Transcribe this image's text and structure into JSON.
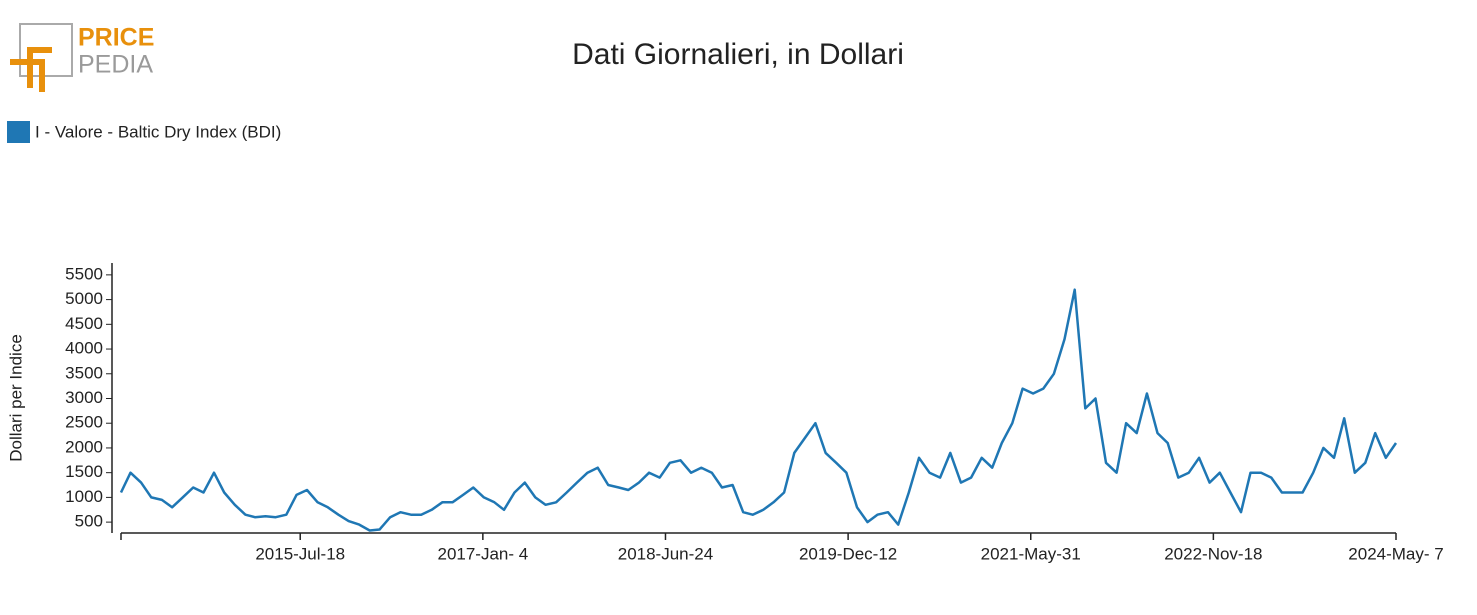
{
  "logo": {
    "line1": "PRICE",
    "line2": "PEDIA"
  },
  "chart_data": {
    "type": "line",
    "title": "Dati Giornalieri, in Dollari",
    "y_label": "Dollari per Indice",
    "x": [
      "2014-02-07",
      "2014-03-07",
      "2014-04-07",
      "2014-05-07",
      "2014-06-07",
      "2014-07-07",
      "2014-08-07",
      "2014-09-07",
      "2014-10-07",
      "2014-11-07",
      "2014-12-07",
      "2015-01-07",
      "2015-02-07",
      "2015-03-07",
      "2015-04-07",
      "2015-05-07",
      "2015-06-07",
      "2015-07-07",
      "2015-08-07",
      "2015-09-07",
      "2015-10-07",
      "2015-11-07",
      "2015-12-07",
      "2016-01-07",
      "2016-02-07",
      "2016-03-07",
      "2016-04-07",
      "2016-05-07",
      "2016-06-07",
      "2016-07-07",
      "2016-08-07",
      "2016-09-07",
      "2016-10-07",
      "2016-11-07",
      "2016-12-07",
      "2017-01-07",
      "2017-02-07",
      "2017-03-07",
      "2017-04-07",
      "2017-05-07",
      "2017-06-07",
      "2017-07-07",
      "2017-08-07",
      "2017-09-07",
      "2017-10-07",
      "2017-11-07",
      "2017-12-07",
      "2018-01-07",
      "2018-02-07",
      "2018-03-07",
      "2018-04-07",
      "2018-05-07",
      "2018-06-07",
      "2018-07-07",
      "2018-08-07",
      "2018-09-07",
      "2018-10-07",
      "2018-11-07",
      "2018-12-07",
      "2019-01-07",
      "2019-02-07",
      "2019-03-07",
      "2019-04-07",
      "2019-05-07",
      "2019-06-07",
      "2019-07-07",
      "2019-08-07",
      "2019-09-07",
      "2019-10-07",
      "2019-11-07",
      "2019-12-07",
      "2020-01-07",
      "2020-02-07",
      "2020-03-07",
      "2020-04-07",
      "2020-05-07",
      "2020-06-07",
      "2020-07-07",
      "2020-08-07",
      "2020-09-07",
      "2020-10-07",
      "2020-11-07",
      "2020-12-07",
      "2021-01-07",
      "2021-02-07",
      "2021-03-07",
      "2021-04-07",
      "2021-05-07",
      "2021-06-07",
      "2021-07-07",
      "2021-08-07",
      "2021-09-07",
      "2021-10-07",
      "2021-11-07",
      "2021-12-07",
      "2022-01-07",
      "2022-02-07",
      "2022-03-07",
      "2022-04-07",
      "2022-05-07",
      "2022-06-07",
      "2022-07-07",
      "2022-08-07",
      "2022-09-07",
      "2022-10-07",
      "2022-11-07",
      "2022-12-07",
      "2023-01-07",
      "2023-02-07",
      "2023-03-07",
      "2023-04-07",
      "2023-05-07",
      "2023-06-07",
      "2023-07-07",
      "2023-08-07",
      "2023-09-07",
      "2023-10-07",
      "2023-11-07",
      "2023-12-07",
      "2024-01-07",
      "2024-02-07",
      "2024-03-07",
      "2024-04-07",
      "2024-05-07"
    ],
    "series": [
      {
        "name": "I - Valore - Baltic Dry Index (BDI)",
        "color": "#1f77b4",
        "values": [
          1100,
          1500,
          1300,
          1000,
          950,
          800,
          1000,
          1200,
          1100,
          1500,
          1100,
          850,
          650,
          600,
          620,
          600,
          650,
          1050,
          1150,
          900,
          800,
          650,
          520,
          450,
          330,
          350,
          600,
          700,
          650,
          650,
          750,
          900,
          900,
          1050,
          1200,
          1000,
          900,
          750,
          1100,
          1300,
          1000,
          850,
          900,
          1100,
          1300,
          1500,
          1600,
          1250,
          1200,
          1150,
          1300,
          1500,
          1400,
          1700,
          1750,
          1500,
          1600,
          1500,
          1200,
          1250,
          700,
          650,
          750,
          900,
          1100,
          1900,
          2200,
          2500,
          1900,
          1700,
          1500,
          800,
          500,
          650,
          700,
          450,
          1100,
          1800,
          1500,
          1400,
          1900,
          1300,
          1400,
          1800,
          1600,
          2100,
          2500,
          3200,
          3100,
          3200,
          3500,
          4200,
          5200,
          2800,
          3000,
          1700,
          1500,
          2500,
          2300,
          3100,
          2300,
          2100,
          1400,
          1500,
          1800,
          1300,
          1500,
          1100,
          700,
          1500,
          1500,
          1400,
          1100,
          1100,
          1100,
          1500,
          2000,
          1800,
          2600,
          1500,
          1700,
          2300,
          1800,
          2100
        ]
      }
    ],
    "xlim": [
      "2014-02-07",
      "2024-05-07"
    ],
    "xticks": [
      {
        "value": "2015-07-18",
        "label": "2015-Jul-18"
      },
      {
        "value": "2017-01-04",
        "label": "2017-Jan- 4"
      },
      {
        "value": "2018-06-24",
        "label": "2018-Jun-24"
      },
      {
        "value": "2019-12-12",
        "label": "2019-Dec-12"
      },
      {
        "value": "2021-05-31",
        "label": "2021-May-31"
      },
      {
        "value": "2022-11-18",
        "label": "2022-Nov-18"
      },
      {
        "value": "2024-05-07",
        "label": "2024-May- 7"
      }
    ],
    "ylim": [
      280,
      5740
    ],
    "yticks": [
      500,
      1000,
      1500,
      2000,
      2500,
      3000,
      3500,
      4000,
      4500,
      5000,
      5500
    ],
    "legend": "top-left"
  }
}
